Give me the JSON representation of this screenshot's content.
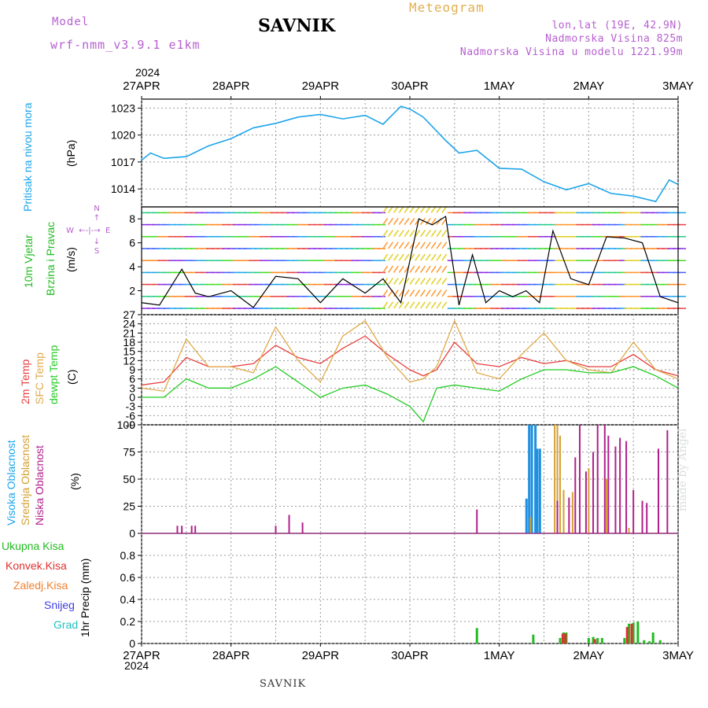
{
  "header": {
    "model_label": "Model",
    "model_value": "wrf-nmm_v3.9.1 e1km",
    "title": "SAVNIK",
    "meteogram": "Meteogram",
    "lonlat": "lon,lat (19E, 42.9N)",
    "altitude": "Nadmorska Visina 825m",
    "model_altitude": "Nadmorska Visina u modelu 1221.99m"
  },
  "footer": {
    "station": "SAVNIK",
    "credit": "made by Angel"
  },
  "x_axis": {
    "year": "2024",
    "ticks": [
      "27APR",
      "28APR",
      "29APR",
      "30APR",
      "1MAY",
      "2MAY",
      "3MAY"
    ]
  },
  "panels": {
    "pressure": {
      "label": "Pritisak na nivou mora",
      "unit": "(hPa)"
    },
    "wind": {
      "label_1": "10m Vjetar",
      "label_2": "Brzina i Pravac",
      "unit": "(m/s)",
      "compass_n": "N",
      "compass_s": "S",
      "compass_w": "W",
      "compass_e": "E"
    },
    "temp": {
      "label_1": "2m Temp",
      "label_2": "SFC Temp",
      "label_3": "dewpt Temp",
      "unit": "(C)"
    },
    "cloud": {
      "label_1": "Visoka Oblacnost",
      "label_2": "Srednja Oblacnost",
      "label_3": "Niska Oblacnost",
      "unit": "(%)"
    },
    "precip": {
      "label_1": "Ukupna Kisa",
      "label_2": "Konvek.Kisa",
      "label_3": "Zaledj.Kisa",
      "label_4": "Snijeg",
      "label_5": "Grad",
      "unit": "1hr Precip (mm)"
    }
  },
  "colors": {
    "pressure": "#1ea5ea",
    "t2m": "#e84040",
    "tsfc": "#e0aa4a",
    "dewpt": "#22cc22",
    "high_cloud": "#1e90e0",
    "mid_cloud": "#d4a030",
    "low_cloud": "#b0208c",
    "precip_total": "#22bb22",
    "precip_conv": "#e03030",
    "precip_frz": "#f08030",
    "snow": "#4040e0",
    "hail": "#20c0c0",
    "label_model": "#b65fd0"
  },
  "chart_data": [
    {
      "type": "line",
      "title": "",
      "ylabel": "Pritisak na nivou mora (hPa)",
      "ylim": [
        1012,
        1024
      ],
      "yticks": [
        1014,
        1017,
        1020,
        1023
      ],
      "grid": true,
      "x_days": [
        0,
        0.1,
        0.25,
        0.5,
        0.75,
        1.0,
        1.25,
        1.5,
        1.75,
        2.0,
        2.25,
        2.5,
        2.7,
        2.9,
        3.0,
        3.15,
        3.4,
        3.55,
        3.75,
        4.0,
        4.25,
        4.5,
        4.75,
        5.0,
        5.25,
        5.5,
        5.75,
        5.9,
        6.0
      ],
      "series": [
        {
          "name": "pressure",
          "values": [
            1017.2,
            1018.0,
            1017.4,
            1017.6,
            1018.8,
            1019.6,
            1020.8,
            1021.3,
            1022.0,
            1022.3,
            1021.8,
            1022.2,
            1021.2,
            1023.2,
            1022.9,
            1022.0,
            1019.4,
            1018.0,
            1018.3,
            1016.3,
            1016.2,
            1014.8,
            1013.9,
            1014.6,
            1013.5,
            1013.2,
            1012.6,
            1015.0,
            1014.5
          ]
        }
      ]
    },
    {
      "type": "line",
      "title": "",
      "ylabel": "10m Vjetar Brzina i Pravac (m/s)",
      "ylim": [
        0,
        9
      ],
      "yticks": [
        2,
        4,
        6,
        8
      ],
      "grid": false,
      "x_days": [
        0,
        0.2,
        0.45,
        0.6,
        0.75,
        1.0,
        1.25,
        1.5,
        1.75,
        2.0,
        2.25,
        2.5,
        2.7,
        2.9,
        3.1,
        3.25,
        3.4,
        3.55,
        3.7,
        3.85,
        4.0,
        4.15,
        4.3,
        4.45,
        4.6,
        4.8,
        5.0,
        5.2,
        5.4,
        5.6,
        5.8,
        6.0
      ],
      "series": [
        {
          "name": "wind speed",
          "values": [
            1.0,
            0.8,
            3.8,
            1.8,
            1.5,
            2.0,
            0.6,
            3.2,
            3.0,
            1.0,
            3.0,
            1.8,
            3.0,
            1.0,
            8.0,
            7.5,
            8.2,
            0.8,
            5.0,
            1.0,
            2.0,
            1.5,
            2.0,
            1.0,
            7.0,
            3.0,
            2.5,
            6.5,
            6.4,
            6.0,
            1.5,
            1.0
          ]
        }
      ]
    },
    {
      "type": "line",
      "title": "",
      "ylabel": "Temp (C)",
      "ylim": [
        -9,
        27
      ],
      "yticks": [
        -9,
        -6,
        -3,
        0,
        3,
        6,
        9,
        12,
        15,
        18,
        21,
        24,
        27
      ],
      "grid": true,
      "x_days": [
        0,
        0.25,
        0.5,
        0.75,
        1.0,
        1.25,
        1.5,
        1.75,
        2.0,
        2.25,
        2.5,
        2.75,
        3.0,
        3.15,
        3.3,
        3.5,
        3.75,
        4.0,
        4.25,
        4.5,
        4.75,
        5.0,
        5.25,
        5.5,
        5.75,
        6.0
      ],
      "series": [
        {
          "name": "2m Temp",
          "values": [
            4,
            5,
            13,
            10,
            10,
            11,
            17,
            13,
            11,
            16,
            20,
            14,
            9,
            7,
            9,
            18,
            11,
            10,
            13,
            11,
            12,
            10,
            10,
            14,
            9,
            7
          ]
        },
        {
          "name": "SFC Temp",
          "values": [
            3,
            2,
            19,
            10,
            10,
            8,
            23,
            12,
            5,
            20,
            25,
            13,
            5,
            6,
            10,
            25,
            8,
            6,
            14,
            21,
            12,
            9,
            8,
            18,
            9,
            6
          ]
        },
        {
          "name": "dewpt Temp",
          "values": [
            0,
            0,
            6,
            3,
            3,
            6,
            10,
            5,
            0,
            3,
            4,
            1,
            -3,
            -8,
            3,
            4,
            3,
            2,
            6,
            9,
            9,
            8,
            8,
            10,
            7,
            3
          ]
        }
      ]
    },
    {
      "type": "bar",
      "title": "",
      "ylabel": "Oblacnost (%)",
      "ylim": [
        0,
        100
      ],
      "yticks": [
        0,
        25,
        50,
        75,
        100
      ],
      "grid": true,
      "series": [
        {
          "name": "Visoka Oblacnost",
          "x_days": [
            4.3,
            4.33,
            4.36,
            4.4,
            4.42,
            4.45
          ],
          "values": [
            32,
            100,
            100,
            100,
            78,
            78
          ]
        },
        {
          "name": "Srednja Oblacnost",
          "x_days": [
            4.35,
            4.62,
            4.65,
            4.68,
            4.72,
            4.82,
            5.0,
            5.2,
            5.45,
            5.6
          ],
          "values": [
            15,
            100,
            100,
            90,
            40,
            38,
            60,
            50,
            5,
            15
          ]
        },
        {
          "name": "Niska Oblacnost",
          "x_days": [
            0.4,
            0.45,
            0.56,
            0.6,
            1.5,
            1.65,
            1.8,
            3.75,
            4.65,
            4.78,
            4.85,
            4.9,
            4.97,
            5.05,
            5.1,
            5.18,
            5.22,
            5.3,
            5.35,
            5.42,
            5.5,
            5.6,
            5.65,
            5.78,
            5.88
          ],
          "values": [
            7,
            7,
            7,
            7,
            7,
            17,
            10,
            22,
            30,
            33,
            70,
            100,
            57,
            75,
            100,
            100,
            90,
            80,
            88,
            85,
            40,
            30,
            28,
            78,
            95
          ]
        }
      ]
    },
    {
      "type": "bar",
      "title": "",
      "ylabel": "1hr Precip (mm)",
      "ylim": [
        0,
        1.0
      ],
      "yticks": [
        0,
        0.2,
        0.4,
        0.6,
        0.8
      ],
      "grid": true,
      "series": [
        {
          "name": "Ukupna Kisa",
          "x_days": [
            3.75,
            4.38,
            4.68,
            4.72,
            4.75,
            5.0,
            5.05,
            5.1,
            5.15,
            5.4,
            5.45,
            5.5,
            5.55,
            5.62,
            5.68,
            5.72,
            5.8
          ],
          "values": [
            0.14,
            0.08,
            0.05,
            0.1,
            0.1,
            0.05,
            0.06,
            0.05,
            0.05,
            0.05,
            0.18,
            0.19,
            0.2,
            0.03,
            0.02,
            0.1,
            0.03
          ]
        },
        {
          "name": "Konvek.Kisa",
          "x_days": [
            4.71,
            4.74,
            5.07,
            5.43,
            5.48
          ],
          "values": [
            0.09,
            0.09,
            0.04,
            0.15,
            0.18
          ]
        }
      ]
    }
  ]
}
